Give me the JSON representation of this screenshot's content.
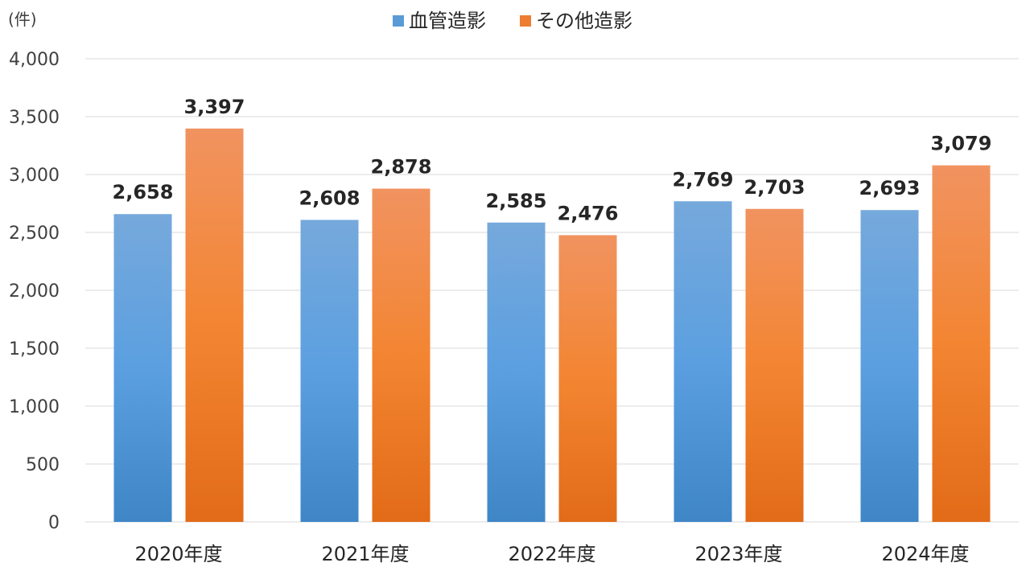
{
  "chart_data": {
    "type": "bar",
    "unit_label": "(件)",
    "categories": [
      "2020年度",
      "2021年度",
      "2022年度",
      "2023年度",
      "2024年度"
    ],
    "series": [
      {
        "name": "血管造影",
        "values": [
          2658,
          2608,
          2585,
          2769,
          2693
        ],
        "color": "#5b9bd5"
      },
      {
        "name": "その他造影",
        "values": [
          3397,
          2878,
          2476,
          2703,
          3079
        ],
        "color": "#ed7d31"
      }
    ],
    "data_labels": [
      [
        "2,658",
        "2,608",
        "2,585",
        "2,769",
        "2,693"
      ],
      [
        "3,397",
        "2,878",
        "2,476",
        "2,703",
        "3,079"
      ]
    ],
    "y_ticks": [
      "0",
      "500",
      "1,000",
      "1,500",
      "2,000",
      "2,500",
      "3,000",
      "3,500",
      "4,000"
    ],
    "ylim": [
      0,
      4000
    ],
    "y_step": 500,
    "grid": true,
    "legend_position": "top-center"
  }
}
